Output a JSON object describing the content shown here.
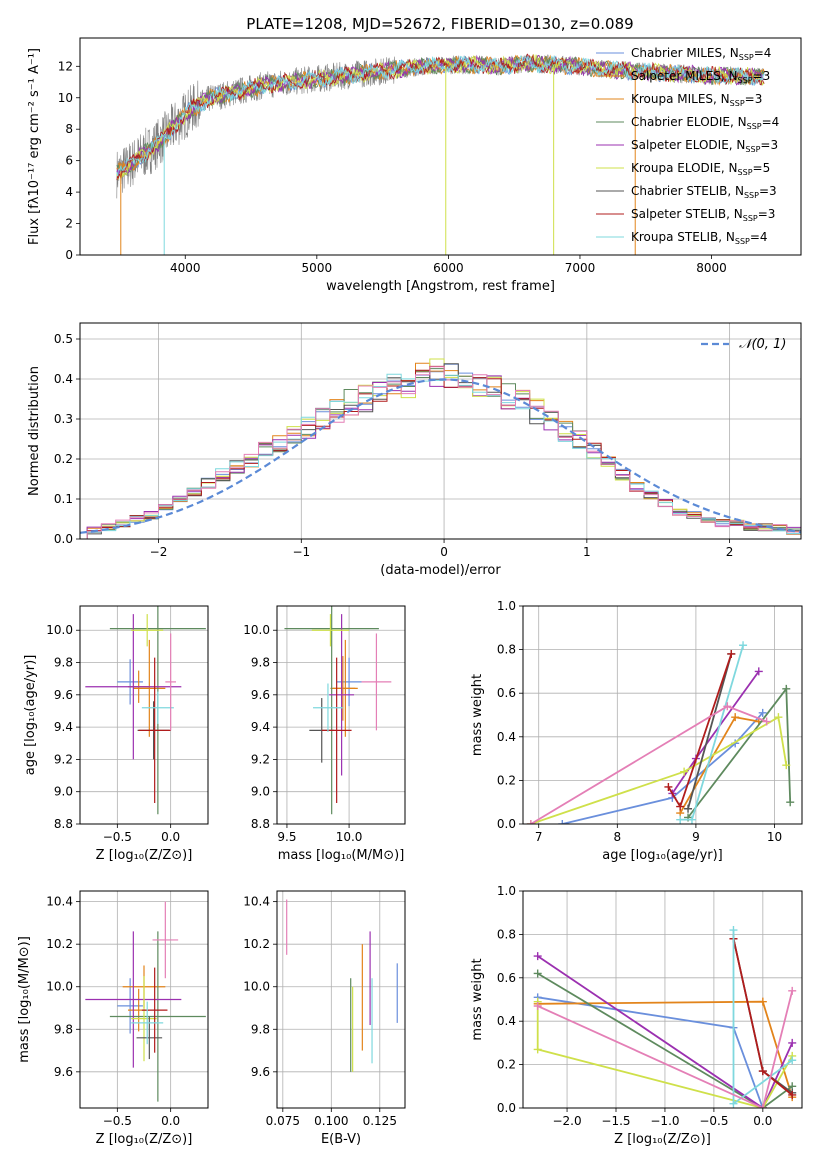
{
  "figure_title": "PLATE=1208, MJD=52672, FIBERID=0130, z=0.089",
  "colors": {
    "Chabrier MILES": "#6a8fdc",
    "Salpeter MILES": "#e2841b",
    "Kroupa MILES": "#e2841b",
    "Chabrier ELODIE": "#5e8a5e",
    "Salpeter ELODIE": "#9b30b0",
    "Kroupa ELODIE": "#cfe04a",
    "Chabrier STELIB": "#555555",
    "Salpeter STELIB": "#b01c1c",
    "Kroupa STELIB": "#7fd8de",
    "pink": "#e47fb6",
    "normal_curve": "#5b8ad6",
    "data_spectrum": "#808080"
  },
  "chart_data": [
    {
      "type": "line",
      "id": "spectrum",
      "title": "PLATE=1208, MJD=52672, FIBERID=0130, z=0.089",
      "xlabel": "wavelength [Angstrom, rest frame]",
      "ylabel": "Flux [fλ10⁻¹⁷ erg cm⁻² s⁻¹ A⁻¹]",
      "xlim": [
        3200,
        8680
      ],
      "ylim": [
        0,
        13.8
      ],
      "xticks": [
        4000,
        5000,
        6000,
        7000,
        8000
      ],
      "yticks": [
        0,
        2,
        4,
        6,
        8,
        10,
        12
      ],
      "legend_position": "top-right",
      "continuum": {
        "x": [
          3480,
          3550,
          3650,
          3750,
          3850,
          3950,
          4050,
          4200,
          4400,
          4600,
          4800,
          5000,
          5200,
          5400,
          5600,
          5800,
          6000,
          6200,
          6400,
          6600,
          6800,
          7000,
          7200,
          7400,
          7600,
          7800,
          8000,
          8200,
          8400
        ],
        "y": [
          5.2,
          5.5,
          6.2,
          6.8,
          7.6,
          8.5,
          9.3,
          10.0,
          10.4,
          10.8,
          11.0,
          11.2,
          11.4,
          11.6,
          11.8,
          12.0,
          12.1,
          12.1,
          12.0,
          12.2,
          12.1,
          12.0,
          11.8,
          11.7,
          11.6,
          11.5,
          11.4,
          11.4,
          11.3
        ]
      },
      "legend": [
        {
          "label": "Chabrier MILES, N",
          "sub": "SSP",
          "suffix": "=4"
        },
        {
          "label": "Salpeter MILES, N",
          "sub": "SSP",
          "suffix": "=3"
        },
        {
          "label": "Kroupa MILES, N",
          "sub": "SSP",
          "suffix": "=3"
        },
        {
          "label": "Chabrier ELODIE, N",
          "sub": "SSP",
          "suffix": "=4"
        },
        {
          "label": "Salpeter ELODIE, N",
          "sub": "SSP",
          "suffix": "=3"
        },
        {
          "label": "Kroupa ELODIE, N",
          "sub": "SSP",
          "suffix": "=5"
        },
        {
          "label": "Chabrier STELIB, N",
          "sub": "SSP",
          "suffix": "=3"
        },
        {
          "label": "Salpeter STELIB, N",
          "sub": "SSP",
          "suffix": "=3"
        },
        {
          "label": "Kroupa STELIB, N",
          "sub": "SSP",
          "suffix": "=4"
        }
      ]
    },
    {
      "type": "histogram",
      "id": "residuals",
      "xlabel": "(data-model)/error",
      "ylabel": "Normed distribution",
      "xlim": [
        -2.55,
        2.5
      ],
      "ylim": [
        0,
        0.54
      ],
      "xticks": [
        -2,
        -1,
        0,
        1,
        2
      ],
      "yticks": [
        0.0,
        0.1,
        0.2,
        0.3,
        0.4,
        0.5
      ],
      "bin_width": 0.1,
      "bin_start": -2.5,
      "base_values": [
        0.02,
        0.03,
        0.04,
        0.05,
        0.06,
        0.08,
        0.1,
        0.12,
        0.14,
        0.16,
        0.18,
        0.2,
        0.22,
        0.24,
        0.26,
        0.28,
        0.3,
        0.32,
        0.34,
        0.35,
        0.37,
        0.38,
        0.39,
        0.4,
        0.41,
        0.41,
        0.4,
        0.39,
        0.38,
        0.36,
        0.34,
        0.32,
        0.3,
        0.27,
        0.25,
        0.22,
        0.19,
        0.16,
        0.13,
        0.11,
        0.09,
        0.07,
        0.06,
        0.05,
        0.04,
        0.04,
        0.03,
        0.03,
        0.03,
        0.02
      ],
      "normal_label": "𝒩(0, 1)",
      "legend_position": "top-right"
    },
    {
      "type": "scatter",
      "id": "age-vs-Z",
      "xlabel": "Z [log₁₀(Z/Z⊙)]",
      "ylabel": "age  [log₁₀(age/yr)]",
      "xlim": [
        -0.85,
        0.35
      ],
      "ylim": [
        8.8,
        10.15
      ],
      "xticks": [
        -0.5,
        0.0
      ],
      "yticks": [
        8.8,
        9.0,
        9.2,
        9.4,
        9.6,
        9.8,
        10.0
      ],
      "points": [
        {
          "series": "Chabrier MILES",
          "x": -0.38,
          "y": 9.68,
          "xerr": 0.12,
          "yerr": 0.14
        },
        {
          "series": "Salpeter MILES",
          "x": -0.2,
          "y": 9.64,
          "xerr": 0.15,
          "yerr": 0.3
        },
        {
          "series": "Kroupa MILES",
          "x": -0.3,
          "y": 9.65,
          "xerr": 0.1,
          "yerr": 0.1
        },
        {
          "series": "Chabrier ELODIE",
          "x": -0.12,
          "y": 10.01,
          "xerr": 0.45,
          "yerr": 1.15
        },
        {
          "series": "Salpeter ELODIE",
          "x": -0.35,
          "y": 9.65,
          "xerr": 0.45,
          "yerr": 0.45
        },
        {
          "series": "Kroupa ELODIE",
          "x": -0.22,
          "y": 10.0,
          "xerr": 0.15,
          "yerr": 0.1
        },
        {
          "series": "Chabrier STELIB",
          "x": -0.16,
          "y": 9.38,
          "xerr": 0.15,
          "yerr": 0.18
        },
        {
          "series": "Salpeter STELIB",
          "x": -0.15,
          "y": 9.38,
          "xerr": 0.15,
          "yerr": 0.45
        },
        {
          "series": "Kroupa STELIB",
          "x": -0.12,
          "y": 9.52,
          "xerr": 0.15,
          "yerr": 0.1
        },
        {
          "series": "pink",
          "x": 0.0,
          "y": 9.68,
          "xerr": 0.05,
          "yerr": 0.3
        }
      ]
    },
    {
      "type": "scatter",
      "id": "age-vs-mass",
      "xlabel": "mass [log₁₀(M/M⊙)]",
      "ylabel": "",
      "xlim": [
        9.42,
        10.45
      ],
      "ylim": [
        8.8,
        10.15
      ],
      "xticks": [
        9.5,
        10.0
      ],
      "yticks": [
        8.8,
        9.0,
        9.2,
        9.4,
        9.6,
        9.8,
        10.0
      ],
      "points": [
        {
          "series": "Chabrier MILES",
          "x": 10.0,
          "y": 9.68,
          "xerr": 0.1,
          "yerr": 0.15
        },
        {
          "series": "Salpeter MILES",
          "x": 9.97,
          "y": 9.64,
          "xerr": 0.1,
          "yerr": 0.3
        },
        {
          "series": "Kroupa MILES",
          "x": 9.95,
          "y": 9.64,
          "xerr": 0.1,
          "yerr": 0.2
        },
        {
          "series": "Chabrier ELODIE",
          "x": 9.86,
          "y": 10.01,
          "xerr": 0.38,
          "yerr": 1.15
        },
        {
          "series": "Salpeter ELODIE",
          "x": 9.94,
          "y": 9.6,
          "xerr": 0.1,
          "yerr": 0.5
        },
        {
          "series": "Kroupa ELODIE",
          "x": 9.85,
          "y": 10.0,
          "xerr": 0.15,
          "yerr": 0.1
        },
        {
          "series": "Chabrier STELIB",
          "x": 9.78,
          "y": 9.38,
          "xerr": 0.1,
          "yerr": 0.2
        },
        {
          "series": "Salpeter STELIB",
          "x": 9.9,
          "y": 9.38,
          "xerr": 0.12,
          "yerr": 0.45
        },
        {
          "series": "Kroupa STELIB",
          "x": 9.83,
          "y": 9.52,
          "xerr": 0.12,
          "yerr": 0.15
        },
        {
          "series": "pink",
          "x": 10.22,
          "y": 9.68,
          "xerr": 0.12,
          "yerr": 0.3
        }
      ]
    },
    {
      "type": "line",
      "id": "weight-vs-age",
      "xlabel": "age  [log₁₀(age/yr)]",
      "ylabel": "mass weight",
      "xlim": [
        6.8,
        10.35
      ],
      "ylim": [
        0.0,
        1.0
      ],
      "xticks": [
        7,
        8,
        9,
        10
      ],
      "yticks": [
        0.0,
        0.2,
        0.4,
        0.6,
        0.8,
        1.0
      ],
      "series": [
        {
          "name": "Chabrier MILES",
          "x": [
            7.3,
            8.7,
            9.5,
            9.85
          ],
          "y": [
            0.0,
            0.12,
            0.37,
            0.51
          ]
        },
        {
          "name": "Salpeter MILES",
          "x": [
            8.8,
            9.5,
            9.8
          ],
          "y": [
            0.05,
            0.49,
            0.47
          ]
        },
        {
          "name": "Chabrier ELODIE",
          "x": [
            8.9,
            10.15,
            10.2
          ],
          "y": [
            0.03,
            0.62,
            0.1
          ]
        },
        {
          "name": "Salpeter ELODIE",
          "x": [
            8.7,
            9.0,
            9.8
          ],
          "y": [
            0.14,
            0.3,
            0.7
          ]
        },
        {
          "name": "Kroupa ELODIE",
          "x": [
            6.9,
            8.85,
            10.05,
            10.15
          ],
          "y": [
            0.0,
            0.24,
            0.49,
            0.27
          ]
        },
        {
          "name": "Chabrier STELIB",
          "x": [
            8.9,
            9.45
          ],
          "y": [
            0.07,
            0.78
          ]
        },
        {
          "name": "Salpeter STELIB",
          "x": [
            8.65,
            8.8,
            9.45
          ],
          "y": [
            0.17,
            0.08,
            0.78
          ]
        },
        {
          "name": "Kroupa STELIB",
          "x": [
            8.8,
            8.95,
            9.6
          ],
          "y": [
            0.02,
            0.02,
            0.82
          ]
        },
        {
          "name": "pink",
          "x": [
            6.9,
            9.4,
            9.9
          ],
          "y": [
            0.0,
            0.54,
            0.47
          ]
        }
      ]
    },
    {
      "type": "scatter",
      "id": "mass-vs-Z",
      "xlabel": "Z [log₁₀(Z/Z⊙)]",
      "ylabel": "mass [log₁₀(M/M⊙)]",
      "xlim": [
        -0.85,
        0.35
      ],
      "ylim": [
        9.43,
        10.45
      ],
      "xticks": [
        -0.5,
        0.0
      ],
      "yticks": [
        9.6,
        9.8,
        10.0,
        10.2,
        10.4
      ],
      "points": [
        {
          "series": "Chabrier MILES",
          "x": -0.38,
          "y": 9.91,
          "xerr": 0.12,
          "yerr": 0.13
        },
        {
          "series": "Salpeter MILES",
          "x": -0.25,
          "y": 10.0,
          "xerr": 0.2,
          "yerr": 0.1
        },
        {
          "series": "Kroupa MILES",
          "x": -0.3,
          "y": 9.89,
          "xerr": 0.1,
          "yerr": 0.1
        },
        {
          "series": "Chabrier ELODIE",
          "x": -0.12,
          "y": 9.86,
          "xerr": 0.45,
          "yerr": 0.4
        },
        {
          "series": "Salpeter ELODIE",
          "x": -0.35,
          "y": 9.94,
          "xerr": 0.45,
          "yerr": 0.32
        },
        {
          "series": "Kroupa ELODIE",
          "x": -0.25,
          "y": 9.85,
          "xerr": 0.12,
          "yerr": 0.2
        },
        {
          "series": "Chabrier STELIB",
          "x": -0.2,
          "y": 9.76,
          "xerr": 0.12,
          "yerr": 0.1
        },
        {
          "series": "Salpeter STELIB",
          "x": -0.15,
          "y": 9.89,
          "xerr": 0.12,
          "yerr": 0.2
        },
        {
          "series": "Kroupa STELIB",
          "x": -0.22,
          "y": 9.83,
          "xerr": 0.15,
          "yerr": 0.1
        },
        {
          "series": "pink",
          "x": -0.05,
          "y": 10.22,
          "xerr": 0.12,
          "yerr": 0.18
        }
      ]
    },
    {
      "type": "scatter",
      "id": "mass-vs-EBV",
      "xlabel": "E(B-V)",
      "ylabel": "",
      "xlim": [
        0.072,
        0.138
      ],
      "ylim": [
        9.43,
        10.45
      ],
      "xticks": [
        0.075,
        0.1,
        0.125
      ],
      "yticks": [
        9.6,
        9.8,
        10.0,
        10.2,
        10.4
      ],
      "points": [
        {
          "series": "pink",
          "x": 0.077,
          "y": 10.28,
          "yerr": 0.13
        },
        {
          "series": "Chabrier ELODIE",
          "x": 0.11,
          "y": 9.82,
          "yerr": 0.22
        },
        {
          "series": "Kroupa ELODIE",
          "x": 0.111,
          "y": 9.8,
          "yerr": 0.2
        },
        {
          "series": "Salpeter MILES",
          "x": 0.116,
          "y": 9.95,
          "yerr": 0.25
        },
        {
          "series": "Salpeter ELODIE",
          "x": 0.12,
          "y": 10.04,
          "yerr": 0.22
        },
        {
          "series": "Kroupa STELIB",
          "x": 0.121,
          "y": 9.84,
          "yerr": 0.2
        },
        {
          "series": "Chabrier MILES",
          "x": 0.134,
          "y": 9.97,
          "yerr": 0.14
        }
      ]
    },
    {
      "type": "line",
      "id": "weight-vs-Z",
      "xlabel": "Z [log₁₀(Z/Z⊙)]",
      "ylabel": "mass weight",
      "xlim": [
        -2.45,
        0.4
      ],
      "ylim": [
        0.0,
        1.0
      ],
      "xticks": [
        -2.0,
        -1.5,
        -1.0,
        -0.5,
        0.0
      ],
      "yticks": [
        0.0,
        0.2,
        0.4,
        0.6,
        0.8,
        1.0
      ],
      "series": [
        {
          "name": "Chabrier MILES",
          "x": [
            -2.3,
            -0.3,
            0.0
          ],
          "y": [
            0.51,
            0.37,
            0.0
          ]
        },
        {
          "name": "Salpeter MILES",
          "x": [
            -2.3,
            0.0,
            0.3
          ],
          "y": [
            0.48,
            0.49,
            0.05
          ]
        },
        {
          "name": "Chabrier ELODIE",
          "x": [
            -2.3,
            0.0,
            0.3
          ],
          "y": [
            0.62,
            0.0,
            0.1
          ]
        },
        {
          "name": "Salpeter ELODIE",
          "x": [
            -2.3,
            0.0,
            0.3
          ],
          "y": [
            0.7,
            0.0,
            0.3
          ]
        },
        {
          "name": "Kroupa ELODIE",
          "x": [
            -2.3,
            -2.3,
            0.0,
            0.3
          ],
          "y": [
            0.49,
            0.27,
            0.0,
            0.24
          ]
        },
        {
          "name": "Chabrier STELIB",
          "x": [
            -0.3,
            0.0,
            0.3
          ],
          "y": [
            0.78,
            0.17,
            0.07
          ]
        },
        {
          "name": "Salpeter STELIB",
          "x": [
            -0.3,
            0.0,
            0.3
          ],
          "y": [
            0.78,
            0.17,
            0.06
          ]
        },
        {
          "name": "Kroupa STELIB",
          "x": [
            -0.3,
            -0.3,
            0.3
          ],
          "y": [
            0.82,
            0.02,
            0.22
          ]
        },
        {
          "name": "pink",
          "x": [
            -2.3,
            0.0,
            0.3
          ],
          "y": [
            0.47,
            0.0,
            0.54
          ]
        }
      ]
    }
  ]
}
